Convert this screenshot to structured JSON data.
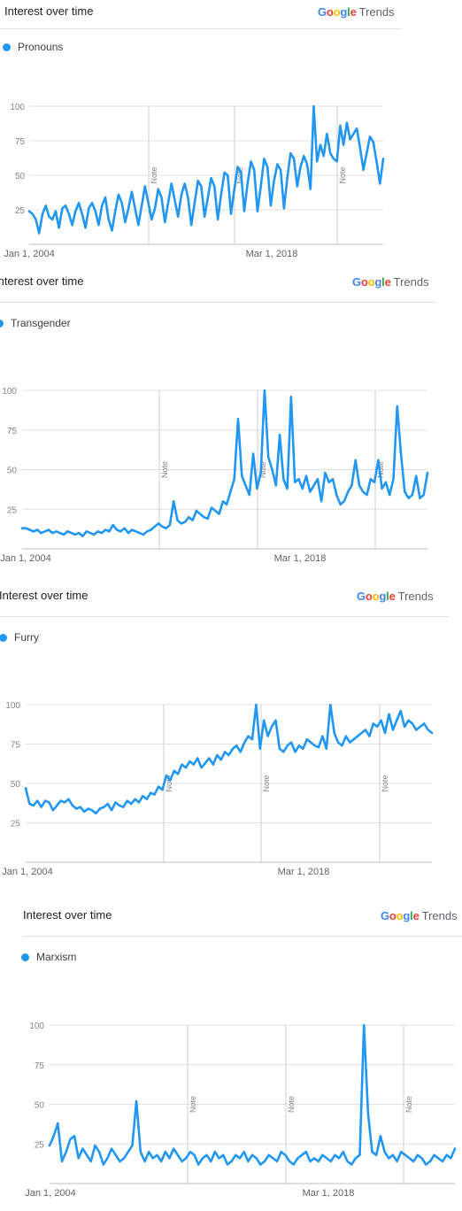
{
  "colors": {
    "series": "#2196f3",
    "grid": "#e0e0e0",
    "google_blue": "#4285f4",
    "google_red": "#ea4335",
    "google_yellow": "#fbbc05",
    "google_green": "#34a853"
  },
  "brand": {
    "g1": "G",
    "g2": "o",
    "g3": "o",
    "g4": "g",
    "g5": "l",
    "g6": "e",
    "trends": "Trends"
  },
  "chart_data": [
    {
      "type": "line",
      "title": "Interest over time",
      "series": [
        {
          "name": "Pronouns",
          "values": [
            24,
            22,
            18,
            8,
            22,
            28,
            20,
            18,
            24,
            12,
            26,
            28,
            22,
            14,
            24,
            30,
            22,
            12,
            26,
            30,
            24,
            14,
            28,
            34,
            18,
            10,
            24,
            36,
            30,
            16,
            26,
            38,
            26,
            14,
            28,
            42,
            30,
            18,
            26,
            40,
            34,
            16,
            30,
            44,
            32,
            20,
            36,
            44,
            34,
            14,
            30,
            46,
            42,
            20,
            34,
            48,
            42,
            18,
            36,
            52,
            50,
            22,
            40,
            56,
            52,
            24,
            44,
            60,
            54,
            24,
            42,
            62,
            56,
            28,
            46,
            58,
            54,
            26,
            48,
            66,
            62,
            42,
            56,
            64,
            58,
            40,
            100,
            60,
            72,
            64,
            80,
            66,
            62,
            60,
            86,
            72,
            88,
            76,
            80,
            84,
            70,
            54,
            66,
            78,
            74,
            60,
            44,
            62
          ]
        }
      ],
      "x_ticks": [
        "Jan 1, 2004",
        "Mar 1, 2018"
      ],
      "y_ticks": [
        100,
        75,
        50,
        25
      ],
      "ylim": [
        0,
        100
      ],
      "notes": [
        "Note",
        "Note",
        "Note"
      ]
    },
    {
      "type": "line",
      "title": "Interest over time",
      "series": [
        {
          "name": "Transgender",
          "values": [
            13,
            13,
            12,
            11,
            12,
            10,
            11,
            12,
            10,
            11,
            10,
            9,
            11,
            10,
            9,
            10,
            8,
            11,
            10,
            9,
            11,
            10,
            12,
            11,
            15,
            12,
            11,
            13,
            10,
            12,
            11,
            10,
            9,
            11,
            12,
            14,
            16,
            14,
            13,
            15,
            30,
            18,
            16,
            17,
            20,
            18,
            24,
            22,
            20,
            19,
            26,
            24,
            22,
            30,
            28,
            36,
            44,
            82,
            46,
            40,
            34,
            60,
            38,
            48,
            100,
            58,
            50,
            40,
            72,
            44,
            38,
            96,
            42,
            44,
            38,
            46,
            36,
            40,
            44,
            30,
            48,
            42,
            44,
            34,
            28,
            30,
            36,
            40,
            56,
            40,
            36,
            34,
            44,
            42,
            56,
            38,
            42,
            34,
            44,
            90,
            60,
            36,
            32,
            34,
            46,
            32,
            34,
            48
          ]
        }
      ],
      "x_ticks": [
        "Jan 1, 2004",
        "Mar 1, 2018"
      ],
      "y_ticks": [
        100,
        75,
        50,
        25
      ],
      "ylim": [
        0,
        100
      ],
      "notes": [
        "Note",
        "Note",
        "Note"
      ]
    },
    {
      "type": "line",
      "title": "Interest over time",
      "series": [
        {
          "name": "Furry",
          "values": [
            47,
            37,
            36,
            39,
            35,
            39,
            38,
            33,
            36,
            39,
            38,
            40,
            36,
            34,
            35,
            32,
            34,
            33,
            31,
            34,
            35,
            37,
            33,
            38,
            36,
            35,
            39,
            37,
            40,
            38,
            42,
            40,
            44,
            43,
            48,
            46,
            55,
            52,
            58,
            56,
            62,
            60,
            64,
            62,
            66,
            60,
            63,
            66,
            62,
            68,
            65,
            70,
            68,
            72,
            74,
            70,
            76,
            80,
            78,
            100,
            72,
            90,
            80,
            86,
            90,
            72,
            70,
            74,
            76,
            70,
            74,
            72,
            78,
            76,
            74,
            73,
            80,
            72,
            100,
            82,
            76,
            74,
            80,
            76,
            78,
            80,
            82,
            84,
            80,
            88,
            86,
            90,
            82,
            94,
            84,
            90,
            96,
            86,
            90,
            88,
            84,
            86,
            88,
            84,
            82
          ]
        }
      ],
      "x_ticks": [
        "Jan 1, 2004",
        "Mar 1, 2018"
      ],
      "y_ticks": [
        100,
        75,
        50,
        25
      ],
      "ylim": [
        0,
        100
      ],
      "notes": [
        "Note",
        "Note",
        "Note"
      ]
    },
    {
      "type": "line",
      "title": "Interest over time",
      "series": [
        {
          "name": "Marxism",
          "values": [
            24,
            30,
            38,
            14,
            20,
            28,
            30,
            16,
            22,
            18,
            14,
            24,
            20,
            12,
            16,
            22,
            18,
            14,
            16,
            20,
            24,
            52,
            20,
            14,
            20,
            16,
            18,
            14,
            20,
            16,
            22,
            18,
            14,
            16,
            20,
            18,
            12,
            16,
            18,
            14,
            20,
            16,
            18,
            12,
            14,
            18,
            16,
            20,
            14,
            18,
            16,
            12,
            14,
            18,
            16,
            14,
            20,
            18,
            14,
            12,
            16,
            18,
            20,
            14,
            16,
            14,
            18,
            16,
            14,
            18,
            16,
            20,
            14,
            12,
            16,
            18,
            100,
            44,
            20,
            18,
            30,
            20,
            16,
            18,
            14,
            20,
            18,
            16,
            14,
            18,
            16,
            12,
            14,
            18,
            16,
            14,
            18,
            16,
            22
          ]
        }
      ],
      "x_ticks": [
        "Jan 1, 2004",
        "Mar 1, 2018"
      ],
      "y_ticks": [
        100,
        75,
        50,
        25
      ],
      "ylim": [
        0,
        100
      ],
      "notes": [
        "Note",
        "Note",
        "Note"
      ]
    }
  ]
}
